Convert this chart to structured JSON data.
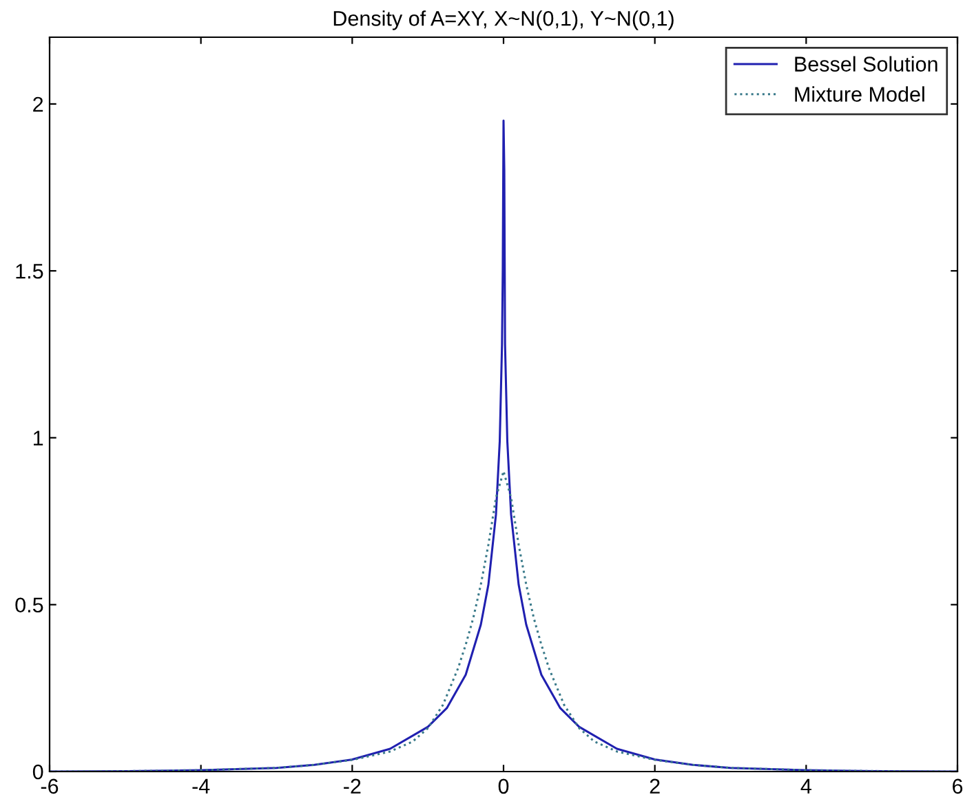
{
  "chart_data": {
    "type": "line",
    "title": "Density of A=XY, X~N(0,1), Y~N(0,1)",
    "xlim": [
      -6,
      6
    ],
    "ylim": [
      0,
      2.2
    ],
    "xticks": [
      -6,
      -4,
      -2,
      0,
      2,
      4,
      6
    ],
    "yticks": [
      0,
      0.5,
      1,
      1.5,
      2
    ],
    "grid": false,
    "legend": "top right",
    "series": [
      {
        "name": "Bessel Solution",
        "color": "#2020b0",
        "line_style": "solid",
        "x": [
          -6,
          -5,
          -4,
          -3,
          -2.5,
          -2,
          -1.5,
          -1,
          -0.75,
          -0.5,
          -0.3,
          -0.2,
          -0.1,
          -0.05,
          -0.02,
          -0.01,
          0,
          0.01,
          0.02,
          0.05,
          0.1,
          0.2,
          0.3,
          0.5,
          0.75,
          1,
          1.5,
          2,
          2.5,
          3,
          4,
          5,
          6
        ],
        "values": [
          0,
          0.001,
          0.004,
          0.011,
          0.02,
          0.036,
          0.068,
          0.134,
          0.19,
          0.29,
          0.44,
          0.56,
          0.77,
          0.99,
          1.28,
          1.5,
          1.95,
          1.8,
          1.28,
          0.99,
          0.77,
          0.56,
          0.44,
          0.29,
          0.19,
          0.134,
          0.068,
          0.036,
          0.02,
          0.011,
          0.004,
          0.001,
          0
        ]
      },
      {
        "name": "Mixture Model",
        "color": "#3a7a8a",
        "line_style": "dotted",
        "x": [
          -6,
          -5,
          -4,
          -3,
          -2.5,
          -2,
          -1.5,
          -1.2,
          -1,
          -0.8,
          -0.6,
          -0.5,
          -0.4,
          -0.3,
          -0.2,
          -0.1,
          0,
          0.1,
          0.2,
          0.3,
          0.4,
          0.5,
          0.6,
          0.8,
          1,
          1.2,
          1.5,
          2,
          2.5,
          3,
          4,
          5,
          6
        ],
        "values": [
          0,
          0.001,
          0.004,
          0.011,
          0.02,
          0.035,
          0.06,
          0.09,
          0.13,
          0.2,
          0.31,
          0.38,
          0.46,
          0.56,
          0.68,
          0.82,
          0.9,
          0.82,
          0.68,
          0.56,
          0.46,
          0.38,
          0.31,
          0.2,
          0.13,
          0.09,
          0.06,
          0.035,
          0.02,
          0.011,
          0.004,
          0.001,
          0
        ]
      }
    ]
  }
}
